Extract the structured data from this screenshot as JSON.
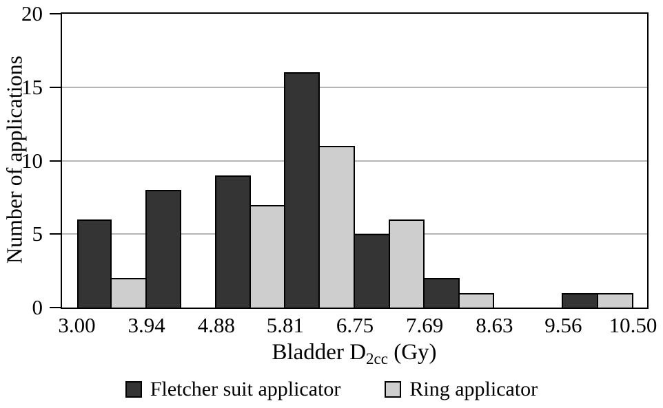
{
  "chart_data": {
    "type": "bar",
    "subtype": "grouped-histogram",
    "title": "",
    "ylabel": "Number of applications",
    "xlabel": "Bladder D2cc (Gy)",
    "xlabel_parts": {
      "prefix": "Bladder D",
      "sub": "2cc",
      "suffix": " (Gy)"
    },
    "bin_edges": [
      3.0,
      3.94,
      4.88,
      5.81,
      6.75,
      7.69,
      8.63,
      9.56,
      10.5
    ],
    "x_tick_labels": [
      "3.00",
      "3.94",
      "4.88",
      "5.81",
      "6.75",
      "7.69",
      "8.63",
      "9.56",
      "10.50"
    ],
    "y_ticks": [
      0,
      5,
      10,
      15,
      20
    ],
    "ylim": [
      0,
      20
    ],
    "xlim": [
      2.8,
      10.69
    ],
    "grid": true,
    "gridline_values": [
      5,
      10,
      15
    ],
    "legend_position": "bottom",
    "series": [
      {
        "name": "Fletcher suit applicator",
        "color": "#343434",
        "values": [
          6,
          8,
          9,
          16,
          5,
          2,
          0,
          1
        ]
      },
      {
        "name": "Ring applicator",
        "color": "#cecece",
        "values": [
          2,
          0,
          7,
          11,
          6,
          1,
          0,
          1
        ]
      }
    ]
  },
  "colors": {
    "frame": "#000000",
    "grid": "#b5b5b5",
    "background": "#ffffff",
    "text": "#000000"
  }
}
